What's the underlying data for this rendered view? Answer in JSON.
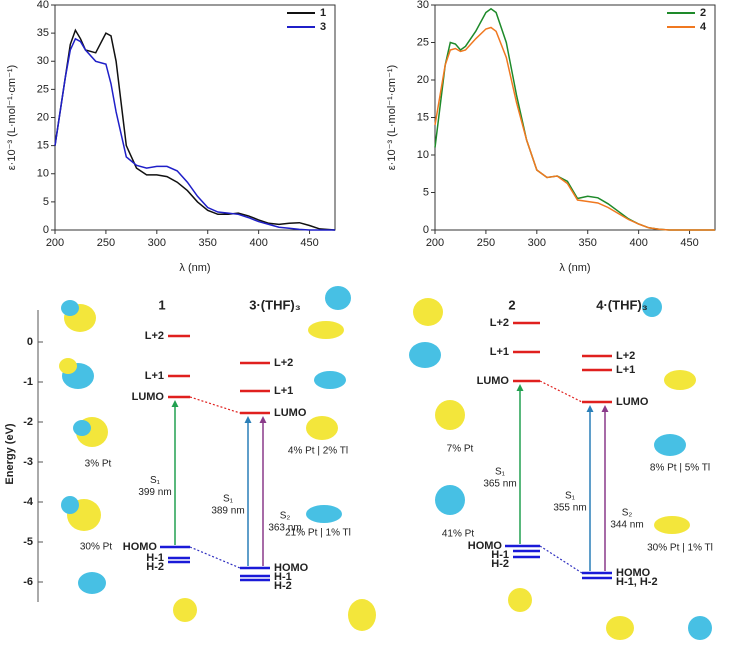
{
  "chart_data": [
    {
      "type": "line",
      "x_label": "λ (nm)",
      "y_label": "ε·10⁻³ (L·mol⁻¹·cm⁻¹)",
      "x": [
        200,
        210,
        215,
        220,
        225,
        230,
        240,
        250,
        255,
        260,
        270,
        280,
        290,
        300,
        310,
        320,
        330,
        340,
        350,
        360,
        370,
        380,
        390,
        400,
        410,
        420,
        430,
        440,
        450,
        460,
        475
      ],
      "series": [
        {
          "name": "1",
          "color": "#111111",
          "values": [
            15,
            27,
            33,
            35.5,
            34,
            32,
            31.5,
            35,
            34.5,
            30,
            15,
            11,
            9.8,
            9.8,
            9.5,
            8.5,
            7,
            5,
            3.5,
            2.8,
            2.8,
            3,
            2.5,
            1.8,
            1.2,
            1,
            1.2,
            1.3,
            0.8,
            0.2,
            0
          ]
        },
        {
          "name": "3",
          "color": "#1f1fc8",
          "values": [
            15,
            27,
            32,
            34,
            33.5,
            32,
            30,
            29.5,
            26,
            21,
            13,
            11.5,
            11,
            11.3,
            11.3,
            10.5,
            8.5,
            6,
            4,
            3.2,
            3,
            2.8,
            2.2,
            1.5,
            1,
            0.5,
            0.3,
            0.1,
            0,
            0,
            0
          ]
        }
      ],
      "xlim": [
        200,
        475
      ],
      "xticks": [
        200,
        250,
        300,
        350,
        400,
        450
      ],
      "ylim": [
        0,
        40
      ],
      "yticks": [
        0,
        5,
        10,
        15,
        20,
        25,
        30,
        35,
        40
      ],
      "legend": "top-right"
    },
    {
      "type": "line",
      "x_label": "λ (nm)",
      "y_label": "ε·10⁻³ (L·mol⁻¹·cm⁻¹)",
      "x": [
        200,
        210,
        215,
        220,
        225,
        230,
        240,
        250,
        255,
        260,
        270,
        280,
        290,
        300,
        310,
        320,
        330,
        340,
        350,
        360,
        370,
        380,
        390,
        400,
        410,
        420,
        430,
        440,
        450,
        460,
        475
      ],
      "series": [
        {
          "name": "2",
          "color": "#1e8a2a",
          "values": [
            11,
            22,
            25,
            24.8,
            24,
            24.5,
            26.5,
            29,
            29.5,
            29,
            25,
            18,
            12,
            8,
            7,
            7.2,
            6.5,
            4.2,
            4.5,
            4.3,
            3.5,
            2.5,
            1.5,
            0.8,
            0.3,
            0.1,
            0,
            0,
            0,
            0,
            0
          ]
        },
        {
          "name": "4",
          "color": "#f07820",
          "values": [
            14,
            22,
            24,
            24.2,
            23.8,
            24,
            25.5,
            26.8,
            27,
            26.5,
            23,
            17,
            12,
            8,
            7,
            7.2,
            6.2,
            4,
            3.8,
            3.6,
            3,
            2.2,
            1.4,
            0.8,
            0.3,
            0.1,
            0,
            0,
            0,
            0,
            0
          ]
        }
      ],
      "xlim": [
        200,
        475
      ],
      "xticks": [
        200,
        250,
        300,
        350,
        400,
        450
      ],
      "ylim": [
        0,
        30
      ],
      "yticks": [
        0,
        5,
        10,
        15,
        20,
        25,
        30
      ],
      "legend": "top-right"
    },
    {
      "type": "energy-levels",
      "y_label": "Energy (eV)",
      "ylim": [
        -6.5,
        0.8
      ],
      "yticks": [
        0,
        -1,
        -2,
        -3,
        -4,
        -5,
        -6
      ],
      "columns": [
        {
          "title": "1",
          "annotations": [
            "3% Pt",
            "30% Pt"
          ],
          "levels": [
            {
              "label": "L+2",
              "energy": 0.15,
              "color": "#e0201e"
            },
            {
              "label": "L+1",
              "energy": -0.85,
              "color": "#e0201e"
            },
            {
              "label": "LUMO",
              "energy": -1.375,
              "color": "#e0201e"
            },
            {
              "label": "HOMO",
              "energy": -5.125,
              "color": "#1a1ad8"
            },
            {
              "label": "H-1",
              "energy": -5.4,
              "color": "#1a1ad8"
            },
            {
              "label": "H-2",
              "energy": -5.5,
              "color": "#1a1ad8"
            }
          ],
          "transitions": [
            {
              "state": "S₁",
              "wavelength": "399 nm",
              "color": "#22a050",
              "from": 3,
              "to": 2
            }
          ]
        },
        {
          "title": "3·(THF)₃",
          "annotations": [
            "4% Pt | 2% Tl",
            "21% Pt | 1% Tl"
          ],
          "levels": [
            {
              "label": "L+2",
              "energy": -0.525,
              "color": "#e0201e"
            },
            {
              "label": "L+1",
              "energy": -1.225,
              "color": "#e0201e"
            },
            {
              "label": "LUMO",
              "energy": -1.775,
              "color": "#e0201e"
            },
            {
              "label": "HOMO",
              "energy": -5.65,
              "color": "#1a1ad8"
            },
            {
              "label": "H-1",
              "energy": -5.85,
              "color": "#1a1ad8"
            },
            {
              "label": "H-2",
              "energy": -5.95,
              "color": "#1a1ad8"
            }
          ],
          "transitions": [
            {
              "state": "S₁",
              "wavelength": "389 nm",
              "color": "#2a7fb8",
              "from": 3,
              "to": 2
            },
            {
              "state": "S₂",
              "wavelength": "363 nm",
              "color": "#8a3a8a",
              "from": 3,
              "to": 2
            }
          ]
        },
        {
          "title": "2",
          "annotations": [
            "7% Pt",
            "41% Pt"
          ],
          "levels": [
            {
              "label": "L+2",
              "energy": 0.475,
              "color": "#e0201e"
            },
            {
              "label": "L+1",
              "energy": -0.25,
              "color": "#e0201e"
            },
            {
              "label": "LUMO",
              "energy": -0.975,
              "color": "#e0201e"
            },
            {
              "label": "HOMO",
              "energy": -5.1,
              "color": "#1a1ad8"
            },
            {
              "label": "H-1",
              "energy": -5.225,
              "color": "#1a1ad8"
            },
            {
              "label": "H-2",
              "energy": -5.375,
              "color": "#1a1ad8"
            }
          ],
          "transitions": [
            {
              "state": "S₁",
              "wavelength": "365 nm",
              "color": "#22a050",
              "from": 3,
              "to": 2
            }
          ]
        },
        {
          "title": "4·(THF)₃",
          "annotations": [
            "8% Pt | 5% Tl",
            "30% Pt | 1% Tl"
          ],
          "levels": [
            {
              "label": "L+2",
              "energy": -0.35,
              "color": "#e0201e"
            },
            {
              "label": "L+1",
              "energy": -0.7,
              "color": "#e0201e"
            },
            {
              "label": "LUMO",
              "energy": -1.5,
              "color": "#e0201e"
            },
            {
              "label": "HOMO",
              "energy": -5.775,
              "color": "#1a1ad8"
            },
            {
              "label": "H-1, H-2",
              "energy": -5.9,
              "color": "#1a1ad8"
            }
          ],
          "transitions": [
            {
              "state": "S₁",
              "wavelength": "355 nm",
              "color": "#2a7fb8",
              "from": 3,
              "to": 2
            },
            {
              "state": "S₂",
              "wavelength": "344 nm",
              "color": "#8a3a8a",
              "from": 3,
              "to": 2
            }
          ]
        }
      ]
    }
  ]
}
